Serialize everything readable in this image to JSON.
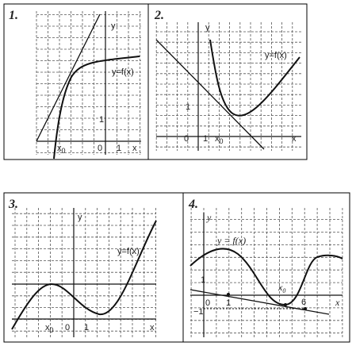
{
  "panels": [
    {
      "number": "1.",
      "y_axis": "y",
      "function": "y=f(x)",
      "y_one": "1",
      "x0": {
        "main": "x",
        "sub": "0"
      },
      "origin": "0",
      "x_one": "1",
      "x_axis": "x"
    },
    {
      "number": "2.",
      "y_axis": "y",
      "function": "y=f(x)",
      "y_one": "1",
      "origin": "0",
      "x_one": "1",
      "x0": {
        "main": "x",
        "sub": "0"
      },
      "x_axis": "x"
    },
    {
      "number": "3.",
      "y_axis": "y",
      "function": "y=f(x)",
      "x0": {
        "main": "x",
        "sub": "0"
      },
      "origin": "0",
      "x_one": "1",
      "x_axis": "x"
    },
    {
      "number": "4.",
      "y_axis": "y",
      "function": "y = f(x)",
      "y_one": "1",
      "x0": {
        "main": "x",
        "sub": "0"
      },
      "origin": "0",
      "x_one": "1",
      "x_six": "6",
      "x_axis": "x",
      "y_minus_one": "−1"
    }
  ]
}
